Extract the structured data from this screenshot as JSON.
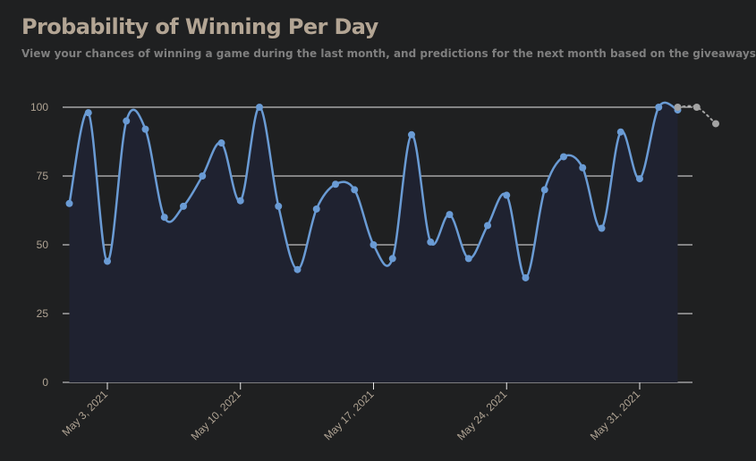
{
  "header": {
    "title": "Probability of Winning Per Day",
    "subtitle": "View your chances of winning a game during the last month, and predictions for the next month based on the giveaways"
  },
  "colors": {
    "background": "#1f2021",
    "series_line": "#6a9bd4",
    "series_area": "#1f2230",
    "prediction_marker": "#a3a3a3",
    "gridline": "#ffffff",
    "title": "#b3a594",
    "subtitle": "#7f7f7f",
    "tick_label": "#b0a494"
  },
  "chart_data": {
    "type": "area",
    "title": "Probability of Winning Per Day",
    "subtitle": "View your chances of winning a game during the last month, and predictions for the next month based on the giveaways",
    "xlabel": "",
    "ylabel": "",
    "ylim": [
      0,
      100
    ],
    "yticks": [
      0,
      25,
      50,
      75,
      100
    ],
    "x_tick_labels": [
      "May 3, 2021",
      "May 10, 2021",
      "May 17, 2021",
      "May 24, 2021",
      "May 31, 2021"
    ],
    "x_tick_dates": [
      "2021-05-03",
      "2021-05-10",
      "2021-05-17",
      "2021-05-24",
      "2021-05-31"
    ],
    "x_range": [
      "2021-05-01",
      "2021-06-04"
    ],
    "grid": true,
    "legend": "none",
    "series": [
      {
        "kind": "history",
        "x": [
          "2021-05-01",
          "2021-05-02",
          "2021-05-03",
          "2021-05-04",
          "2021-05-05",
          "2021-05-06",
          "2021-05-07",
          "2021-05-08",
          "2021-05-09",
          "2021-05-10",
          "2021-05-11",
          "2021-05-12",
          "2021-05-13",
          "2021-05-14",
          "2021-05-15",
          "2021-05-16",
          "2021-05-17",
          "2021-05-18",
          "2021-05-19",
          "2021-05-20",
          "2021-05-21",
          "2021-05-22",
          "2021-05-23",
          "2021-05-24",
          "2021-05-25",
          "2021-05-26",
          "2021-05-27",
          "2021-05-28",
          "2021-05-29",
          "2021-05-30",
          "2021-05-31",
          "2021-06-01",
          "2021-06-02"
        ],
        "values": [
          65,
          98,
          44,
          95,
          92,
          60,
          64,
          75,
          87,
          66,
          100,
          64,
          41,
          63,
          72,
          70,
          50,
          45,
          90,
          51,
          61,
          45,
          57,
          68,
          38,
          70,
          82,
          78,
          56,
          91,
          74,
          100,
          99
        ]
      },
      {
        "kind": "prediction",
        "x": [
          "2021-06-02",
          "2021-06-03",
          "2021-06-04"
        ],
        "values": [
          100,
          100,
          94
        ]
      }
    ]
  }
}
